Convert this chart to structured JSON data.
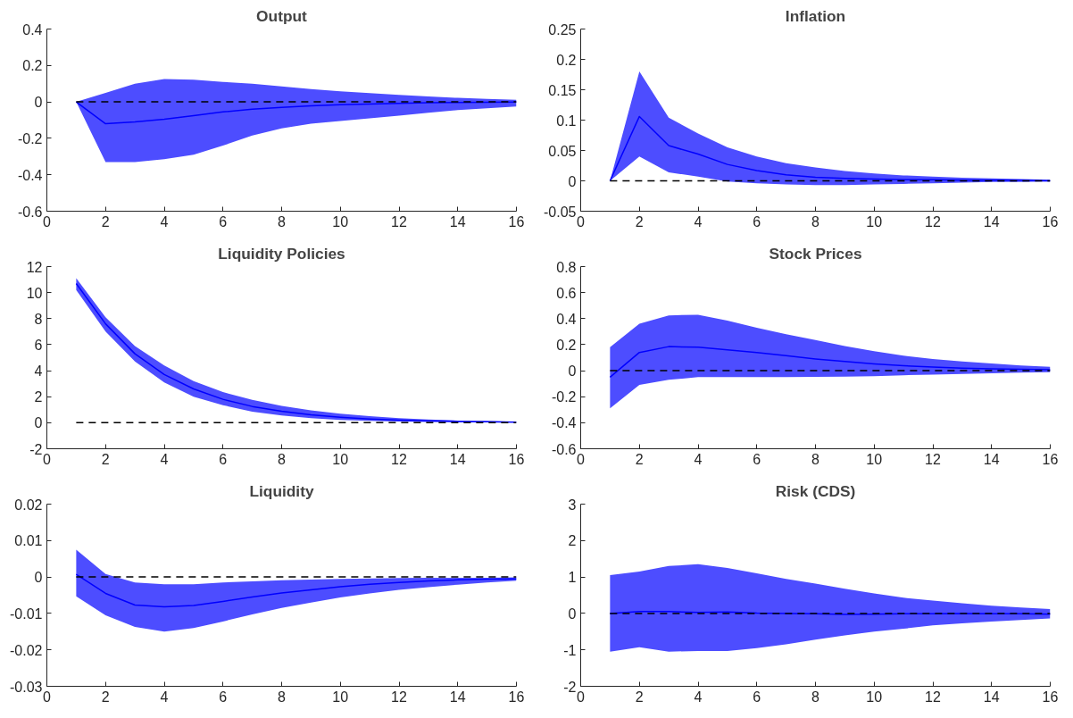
{
  "chart_data": [
    {
      "type": "line",
      "title": "Output",
      "x": [
        1,
        2,
        3,
        4,
        5,
        6,
        7,
        8,
        9,
        10,
        11,
        12,
        13,
        14,
        15,
        16
      ],
      "xlim": [
        0,
        16
      ],
      "xticks": [
        0,
        2,
        4,
        6,
        8,
        10,
        12,
        14,
        16
      ],
      "ylim": [
        -0.6,
        0.4
      ],
      "yticks": [
        -0.6,
        -0.4,
        -0.2,
        0,
        0.2,
        0.4
      ],
      "grid": false,
      "series": [
        {
          "color": "#0000ff",
          "values": [
            0,
            -0.12,
            -0.11,
            -0.095,
            -0.075,
            -0.055,
            -0.04,
            -0.03,
            -0.022,
            -0.016,
            -0.012,
            -0.008,
            -0.005,
            -0.003,
            -0.002,
            -0.001
          ],
          "upper": [
            0,
            0.05,
            0.1,
            0.125,
            0.122,
            0.11,
            0.1,
            0.085,
            0.07,
            0.058,
            0.048,
            0.038,
            0.03,
            0.022,
            0.016,
            0.012
          ],
          "lower": [
            0,
            -0.33,
            -0.33,
            -0.315,
            -0.29,
            -0.24,
            -0.185,
            -0.145,
            -0.12,
            -0.105,
            -0.09,
            -0.075,
            -0.06,
            -0.045,
            -0.035,
            -0.025
          ]
        }
      ],
      "ref_lines": [
        {
          "axis": "y",
          "value": 0,
          "color": "#000000",
          "line_style": "dashed"
        }
      ]
    },
    {
      "type": "line",
      "title": "Inflation",
      "x": [
        1,
        2,
        3,
        4,
        5,
        6,
        7,
        8,
        9,
        10,
        11,
        12,
        13,
        14,
        15,
        16
      ],
      "xlim": [
        0,
        16
      ],
      "xticks": [
        0,
        2,
        4,
        6,
        8,
        10,
        12,
        14,
        16
      ],
      "ylim": [
        -0.05,
        0.25
      ],
      "yticks": [
        -0.05,
        0,
        0.05,
        0.1,
        0.15,
        0.2,
        0.25
      ],
      "grid": false,
      "series": [
        {
          "color": "#0000ff",
          "values": [
            0,
            0.106,
            0.058,
            0.044,
            0.027,
            0.017,
            0.01,
            0.006,
            0.004,
            0.003,
            0.002,
            0.002,
            0.001,
            0.001,
            0.001,
            0
          ],
          "upper": [
            0,
            0.18,
            0.104,
            0.078,
            0.055,
            0.04,
            0.029,
            0.022,
            0.016,
            0.012,
            0.009,
            0.007,
            0.005,
            0.004,
            0.003,
            0.002
          ],
          "lower": [
            0,
            0.04,
            0.014,
            0.007,
            -0.001,
            -0.004,
            -0.006,
            -0.007,
            -0.007,
            -0.006,
            -0.005,
            -0.004,
            -0.003,
            -0.002,
            -0.002,
            -0.001
          ]
        }
      ],
      "ref_lines": [
        {
          "axis": "y",
          "value": 0,
          "color": "#000000",
          "line_style": "dashed"
        }
      ]
    },
    {
      "type": "line",
      "title": "Liquidity Policies",
      "x": [
        1,
        2,
        3,
        4,
        5,
        6,
        7,
        8,
        9,
        10,
        11,
        12,
        13,
        14,
        15,
        16
      ],
      "xlim": [
        0,
        16
      ],
      "xticks": [
        0,
        2,
        4,
        6,
        8,
        10,
        12,
        14,
        16
      ],
      "ylim": [
        -2,
        12
      ],
      "yticks": [
        -2,
        0,
        2,
        4,
        6,
        8,
        10,
        12
      ],
      "grid": false,
      "series": [
        {
          "color": "#0000ff",
          "values": [
            10.7,
            7.6,
            5.3,
            3.7,
            2.6,
            1.8,
            1.25,
            0.88,
            0.6,
            0.42,
            0.29,
            0.2,
            0.14,
            0.1,
            0.07,
            0.05
          ],
          "upper": [
            11.1,
            8.1,
            5.9,
            4.4,
            3.2,
            2.35,
            1.75,
            1.3,
            0.95,
            0.7,
            0.5,
            0.35,
            0.25,
            0.17,
            0.12,
            0.08
          ],
          "lower": [
            10.2,
            7.0,
            4.7,
            3.1,
            2.0,
            1.35,
            0.85,
            0.55,
            0.35,
            0.22,
            0.14,
            0.09,
            0.06,
            0.04,
            0.03,
            0.02
          ]
        }
      ],
      "ref_lines": [
        {
          "axis": "y",
          "value": 0,
          "color": "#000000",
          "line_style": "dashed"
        }
      ]
    },
    {
      "type": "line",
      "title": "Stock Prices",
      "x": [
        1,
        2,
        3,
        4,
        5,
        6,
        7,
        8,
        9,
        10,
        11,
        12,
        13,
        14,
        15,
        16
      ],
      "xlim": [
        0,
        16
      ],
      "xticks": [
        0,
        2,
        4,
        6,
        8,
        10,
        12,
        14,
        16
      ],
      "ylim": [
        -0.6,
        0.8
      ],
      "yticks": [
        -0.6,
        -0.4,
        -0.2,
        0,
        0.2,
        0.4,
        0.6,
        0.8
      ],
      "grid": false,
      "series": [
        {
          "color": "#0000ff",
          "values": [
            -0.05,
            0.14,
            0.185,
            0.18,
            0.16,
            0.14,
            0.115,
            0.09,
            0.07,
            0.052,
            0.038,
            0.028,
            0.02,
            0.014,
            0.01,
            0.007
          ],
          "upper": [
            0.18,
            0.36,
            0.425,
            0.43,
            0.385,
            0.33,
            0.28,
            0.235,
            0.19,
            0.15,
            0.115,
            0.09,
            0.07,
            0.055,
            0.04,
            0.03
          ],
          "lower": [
            -0.29,
            -0.11,
            -0.07,
            -0.05,
            -0.05,
            -0.05,
            -0.05,
            -0.048,
            -0.045,
            -0.042,
            -0.035,
            -0.03,
            -0.025,
            -0.02,
            -0.015,
            -0.012
          ]
        }
      ],
      "ref_lines": [
        {
          "axis": "y",
          "value": 0,
          "color": "#000000",
          "line_style": "dashed"
        }
      ]
    },
    {
      "type": "line",
      "title": "Liquidity",
      "x": [
        1,
        2,
        3,
        4,
        5,
        6,
        7,
        8,
        9,
        10,
        11,
        12,
        13,
        14,
        15,
        16
      ],
      "xlim": [
        0,
        16
      ],
      "xticks": [
        0,
        2,
        4,
        6,
        8,
        10,
        12,
        14,
        16
      ],
      "ylim": [
        -0.03,
        0.02
      ],
      "yticks": [
        -0.03,
        -0.02,
        -0.01,
        0,
        0.01,
        0.02
      ],
      "grid": false,
      "series": [
        {
          "color": "#0000ff",
          "values": [
            0.0007,
            -0.0045,
            -0.0077,
            -0.0082,
            -0.0078,
            -0.0067,
            -0.0055,
            -0.0044,
            -0.0035,
            -0.0027,
            -0.002,
            -0.0015,
            -0.0011,
            -0.0008,
            -0.0006,
            -0.0005
          ],
          "upper": [
            0.0075,
            0.0008,
            -0.0015,
            -0.002,
            -0.002,
            -0.0015,
            -0.0012,
            -0.0009,
            -0.0007,
            -0.0005,
            -0.0004,
            -0.0003,
            -0.0002,
            -0.0002,
            -0.0002,
            -0.0001
          ],
          "lower": [
            -0.0053,
            -0.0105,
            -0.0137,
            -0.015,
            -0.014,
            -0.0122,
            -0.0103,
            -0.0085,
            -0.007,
            -0.0056,
            -0.0045,
            -0.0035,
            -0.0028,
            -0.0021,
            -0.0015,
            -0.001
          ]
        }
      ],
      "ref_lines": [
        {
          "axis": "y",
          "value": 0,
          "color": "#000000",
          "line_style": "dashed"
        }
      ]
    },
    {
      "type": "line",
      "title": "Risk (CDS)",
      "x": [
        1,
        2,
        3,
        4,
        5,
        6,
        7,
        8,
        9,
        10,
        11,
        12,
        13,
        14,
        15,
        16
      ],
      "xlim": [
        0,
        16
      ],
      "xticks": [
        0,
        2,
        4,
        6,
        8,
        10,
        12,
        14,
        16
      ],
      "ylim": [
        -2,
        3
      ],
      "yticks": [
        -2,
        -1,
        0,
        1,
        2,
        3
      ],
      "grid": false,
      "series": [
        {
          "color": "#0000ff",
          "values": [
            0,
            0.05,
            0.05,
            0.03,
            0.04,
            0.01,
            0,
            -0.01,
            -0.03,
            -0.02,
            -0.01,
            -0.01,
            0,
            -0.01,
            -0.01,
            -0.02
          ],
          "upper": [
            1.05,
            1.15,
            1.3,
            1.35,
            1.25,
            1.1,
            0.95,
            0.82,
            0.68,
            0.55,
            0.43,
            0.35,
            0.28,
            0.21,
            0.16,
            0.12
          ],
          "lower": [
            -1.05,
            -0.93,
            -1.05,
            -1.03,
            -1.03,
            -0.95,
            -0.85,
            -0.72,
            -0.6,
            -0.5,
            -0.42,
            -0.33,
            -0.27,
            -0.22,
            -0.18,
            -0.14
          ]
        }
      ],
      "ref_lines": [
        {
          "axis": "y",
          "value": 0,
          "color": "#000000",
          "line_style": "dashed"
        }
      ]
    }
  ]
}
